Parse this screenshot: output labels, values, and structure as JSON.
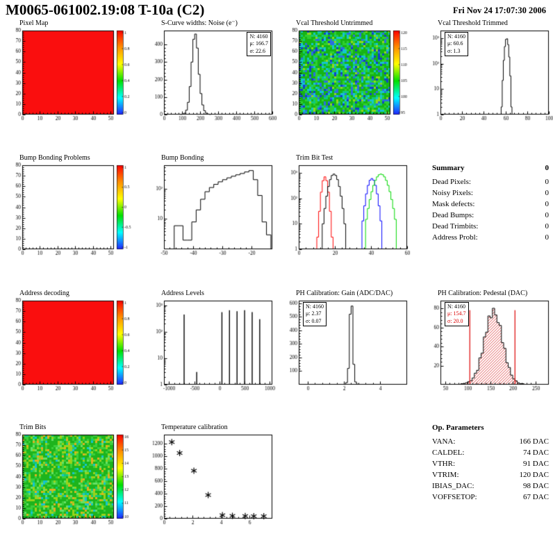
{
  "header": {
    "title": "M0065-061002.19:08 T-10a (C2)",
    "date": "Fri Nov 24 17:07:30 2006"
  },
  "summary": {
    "title": "Summary",
    "value": "0",
    "items": [
      {
        "label": "Dead Pixels:",
        "value": "0"
      },
      {
        "label": "Noisy Pixels:",
        "value": "0"
      },
      {
        "label": "Mask defects:",
        "value": "0"
      },
      {
        "label": "Dead Bumps:",
        "value": "0"
      },
      {
        "label": "Dead Trimbits:",
        "value": "0"
      },
      {
        "label": "Address Probl:",
        "value": "0"
      }
    ]
  },
  "op_parameters": {
    "title": "Op. Parameters",
    "items": [
      {
        "label": "VANA:",
        "value": "166 DAC"
      },
      {
        "label": "CALDEL:",
        "value": "74 DAC"
      },
      {
        "label": "VTHR:",
        "value": "91 DAC"
      },
      {
        "label": "VTRIM:",
        "value": "120 DAC"
      },
      {
        "label": "IBIAS_DAC:",
        "value": "98 DAC"
      },
      {
        "label": "VOFFSETOP:",
        "value": "67 DAC"
      }
    ]
  },
  "chart_data": [
    {
      "title": "Pixel Map",
      "type": "heatmap",
      "fill": "solid",
      "color": "#fa0e0e",
      "xlim": [
        0,
        52
      ],
      "ylim": [
        0,
        80
      ],
      "xticks": [
        0,
        10,
        20,
        30,
        40,
        50
      ],
      "yticks": [
        0,
        10,
        20,
        30,
        40,
        50,
        60,
        70,
        80
      ],
      "colorbar": {
        "ticks": [
          "1",
          "0.8",
          "0.6",
          "0.4",
          "0.2",
          "0"
        ]
      }
    },
    {
      "title": "S-Curve widths: Noise (e⁻)",
      "type": "hist",
      "xlim": [
        0,
        600
      ],
      "ylim": [
        0,
        480
      ],
      "xticks": [
        0,
        100,
        200,
        300,
        400,
        500,
        600
      ],
      "yticks": [
        0,
        100,
        200,
        300,
        400
      ],
      "bins": {
        "start": 90,
        "width": 10,
        "values": [
          1,
          3,
          8,
          25,
          70,
          160,
          300,
          430,
          460,
          380,
          230,
          120,
          55,
          22,
          8,
          3,
          1
        ]
      },
      "stats": {
        "lines": [
          "N: 4160",
          "μ: 166.7",
          "σ: 22.6"
        ]
      }
    },
    {
      "title": "Vcal Threshold Untrimmed",
      "type": "heatmap",
      "fill": "noise",
      "seed": 7,
      "palette": [
        [
          "#16b416",
          0.38
        ],
        [
          "#2fcf2f",
          0.18
        ],
        [
          "#0fc87f",
          0.12
        ],
        [
          "#15c4cf",
          0.12
        ],
        [
          "#2b6fe0",
          0.1
        ],
        [
          "#1242c8",
          0.06
        ],
        [
          "#8fd71e",
          0.04
        ]
      ],
      "xlim": [
        0,
        52
      ],
      "ylim": [
        0,
        80
      ],
      "xticks": [
        0,
        10,
        20,
        30,
        40,
        50
      ],
      "yticks": [
        0,
        10,
        20,
        30,
        40,
        50,
        60,
        70,
        80
      ],
      "colorbar": {
        "ticks": [
          "120",
          "115",
          "110",
          "105",
          "100",
          "95"
        ]
      }
    },
    {
      "title": "Vcal Threshold Trimmed",
      "type": "hist",
      "logy": true,
      "xlim": [
        0,
        100
      ],
      "ylim": [
        1,
        2000
      ],
      "xticks": [
        0,
        20,
        40,
        60,
        80,
        100
      ],
      "yticks": [
        1,
        10,
        100,
        1000
      ],
      "bins": {
        "start": 56,
        "width": 1,
        "values": [
          2,
          22,
          135,
          470,
          900,
          950,
          560,
          183,
          33,
          2
        ]
      },
      "stats": {
        "lines": [
          "N: 4160",
          "μ: 60.6",
          "σ: 1.3"
        ]
      }
    },
    {
      "title": "Bump Bonding Problems",
      "type": "heatmap",
      "fill": "empty",
      "xlim": [
        0,
        52
      ],
      "ylim": [
        0,
        80
      ],
      "xticks": [
        0,
        10,
        20,
        30,
        40,
        50
      ],
      "yticks": [
        0,
        10,
        20,
        30,
        40,
        50,
        60,
        70,
        80
      ],
      "colorbar": {
        "ticks": [
          "1",
          "0.5",
          "0",
          "-0.5",
          "-1"
        ]
      }
    },
    {
      "title": "Bump Bonding",
      "type": "hist",
      "logy": true,
      "xlim": [
        -50,
        -13
      ],
      "ylim": [
        1,
        600
      ],
      "xticks": [
        -50,
        -40,
        -30,
        -20
      ],
      "yticks": [
        10,
        100
      ],
      "bins": {
        "start": -46.5,
        "width": 1.5,
        "values": [
          6,
          6,
          2,
          2,
          8,
          20,
          45,
          80,
          110,
          140,
          170,
          200,
          230,
          260,
          290,
          320,
          360,
          400,
          200,
          60,
          8,
          3
        ]
      }
    },
    {
      "title": "Trim Bit Test",
      "type": "hist_multi",
      "logy": true,
      "xlim": [
        0,
        60
      ],
      "ylim": [
        1,
        2000
      ],
      "xticks": [
        0,
        20,
        40,
        60
      ],
      "yticks": [
        1,
        10,
        100,
        1000
      ],
      "series": [
        {
          "name": "trim-red",
          "color": "#ff0000",
          "bins": {
            "start": 10,
            "width": 1,
            "values": [
              3,
              31,
              175,
              495,
              700,
              495,
              175,
              31,
              3
            ]
          }
        },
        {
          "name": "trim-black",
          "color": "#000000",
          "bins": {
            "start": 13,
            "width": 1,
            "values": [
              10,
              40,
              122,
              292,
              546,
              794,
              900,
              794,
              546,
              292,
              122,
              40,
              10
            ]
          }
        },
        {
          "name": "trim-blue",
          "color": "#0000ff",
          "bins": {
            "start": 35,
            "width": 1,
            "values": [
              13,
              51,
              150,
              324,
              514,
              600,
              514,
              324,
              150,
              51,
              13
            ]
          }
        },
        {
          "name": "trim-green",
          "color": "#00d900",
          "bins": {
            "start": 37,
            "width": 1,
            "values": [
              15,
              40,
              90,
              183,
              324,
              507,
              697,
              844,
              900,
              844,
              697,
              507,
              324,
              183,
              90,
              40,
              15
            ]
          }
        }
      ]
    },
    {
      "title": "Address decoding",
      "type": "heatmap",
      "fill": "solid",
      "color": "#fa0e0e",
      "xlim": [
        0,
        52
      ],
      "ylim": [
        0,
        80
      ],
      "xticks": [
        0,
        10,
        20,
        30,
        40,
        50
      ],
      "yticks": [
        0,
        10,
        20,
        30,
        40,
        50,
        60,
        70,
        80
      ],
      "colorbar": {
        "ticks": [
          "1",
          "0.8",
          "0.6",
          "0.4",
          "0.2",
          "0"
        ]
      }
    },
    {
      "title": "Address Levels",
      "type": "spikes",
      "logy": true,
      "xlim": [
        -1100,
        1050
      ],
      "ylim": [
        1,
        1500
      ],
      "xticks": [
        -1000,
        -500,
        0,
        500,
        1000
      ],
      "yticks": [
        1,
        10,
        100,
        1000
      ],
      "spikes": [
        [
          -700,
          450
        ],
        [
          -450,
          3
        ],
        [
          50,
          550
        ],
        [
          200,
          650
        ],
        [
          350,
          600
        ],
        [
          500,
          650
        ],
        [
          650,
          550
        ],
        [
          800,
          300
        ]
      ]
    },
    {
      "title": "PH Calibration: Gain (ADC/DAC)",
      "type": "hist",
      "xlim": [
        -0.5,
        5.5
      ],
      "ylim": [
        0,
        620
      ],
      "xticks": [
        0,
        2,
        4
      ],
      "yticks": [
        100,
        200,
        300,
        400,
        500,
        600
      ],
      "bins": {
        "start": 2.0,
        "width": 0.1,
        "values": [
          2,
          15,
          120,
          520,
          580,
          150,
          20,
          4
        ]
      },
      "stats": {
        "lines": [
          "N: 4160",
          "μ: 2.37",
          "σ: 0.07"
        ]
      }
    },
    {
      "title": "PH Calibration: Pedestal (DAC)",
      "type": "hist",
      "hatch": true,
      "xlim": [
        40,
        280
      ],
      "ylim": [
        0,
        88
      ],
      "xticks": [
        50,
        100,
        150,
        200,
        250
      ],
      "yticks": [
        20,
        40,
        60,
        80
      ],
      "bins": {
        "start": 85,
        "width": 5,
        "values": [
          1,
          1,
          2,
          3,
          4,
          7,
          12,
          15,
          28,
          33,
          50,
          55,
          72,
          70,
          80,
          73,
          65,
          62,
          44,
          38,
          23,
          18,
          10,
          6,
          4,
          2,
          1,
          1
        ]
      },
      "vlines": [
        [
          105,
          78
        ],
        [
          205,
          78
        ]
      ],
      "vline_color": "#dd0000",
      "stats": {
        "lines": [
          "N: 4160",
          "μ: 154.7",
          "σ: 20.0"
        ],
        "colors": [
          "#000000",
          "#dd0000",
          "#dd0000"
        ]
      }
    },
    {
      "title": "Trim Bits",
      "type": "heatmap",
      "fill": "noise",
      "seed": 21,
      "palette": [
        [
          "#1db41d",
          0.46
        ],
        [
          "#3ccf3c",
          0.2
        ],
        [
          "#98d31c",
          0.12
        ],
        [
          "#e0b020",
          0.06
        ],
        [
          "#15c4cf",
          0.06
        ],
        [
          "#66e066",
          0.06
        ],
        [
          "#0fc87f",
          0.04
        ]
      ],
      "xlim": [
        0,
        52
      ],
      "ylim": [
        0,
        80
      ],
      "xticks": [
        0,
        10,
        20,
        30,
        40,
        50
      ],
      "yticks": [
        0,
        10,
        20,
        30,
        40,
        50,
        60,
        70,
        80
      ],
      "colorbar": {
        "ticks": [
          "16",
          "15",
          "14",
          "13",
          "12",
          "11",
          "10"
        ]
      }
    },
    {
      "title": "Temperature calibration",
      "type": "scatter",
      "xlim": [
        0,
        7.6
      ],
      "ylim": [
        0,
        1350
      ],
      "xticks": [
        0,
        2,
        4,
        6
      ],
      "yticks": [
        0,
        200,
        400,
        600,
        800,
        1000,
        1200
      ],
      "points": [
        [
          0.55,
          1230
        ],
        [
          1.1,
          1055
        ],
        [
          2.1,
          770
        ],
        [
          3.1,
          380
        ],
        [
          4.1,
          55
        ],
        [
          4.8,
          45
        ],
        [
          5.7,
          42
        ],
        [
          6.3,
          40
        ],
        [
          7.0,
          38
        ]
      ]
    }
  ]
}
